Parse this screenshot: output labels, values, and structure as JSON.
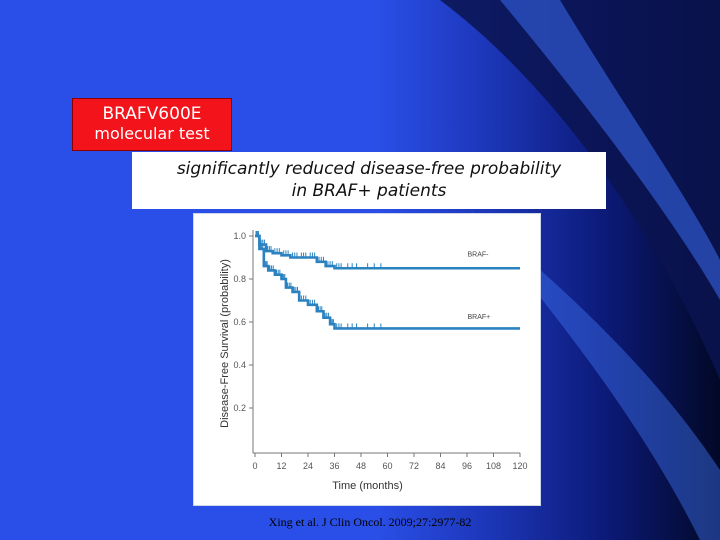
{
  "slide": {
    "box_label_line1": "BRAFV600E",
    "box_label_line2": "molecular test",
    "headline_line1": "significantly reduced disease-free probability",
    "headline_line2": "in BRAF+ patients",
    "citation": "Xing et al. J Clin Oncol. 2009;27:2977-82"
  },
  "colors": {
    "background_left": "#2a4fe8",
    "background_right": "#020826",
    "box_red": "#f2131b",
    "curve": "#2a82c0",
    "axis_text": "#555555"
  },
  "chart_data": {
    "type": "line",
    "title": "",
    "xlabel": "Time (months)",
    "ylabel": "Disease-Free Survival (probability)",
    "xlim": [
      0,
      120
    ],
    "ylim": [
      0,
      1.0
    ],
    "x_ticks": [
      "0",
      "12",
      "24",
      "36",
      "48",
      "60",
      "72",
      "84",
      "96",
      "108",
      "120"
    ],
    "y_ticks": [
      "0.2",
      "0.4",
      "0.6",
      "0.8",
      "1.0"
    ],
    "grid": false,
    "series": [
      {
        "name": "BRAF-",
        "label_at": [
          108,
          0.9
        ],
        "points": [
          [
            0,
            1.0
          ],
          [
            2,
            0.96
          ],
          [
            5,
            0.93
          ],
          [
            8,
            0.92
          ],
          [
            12,
            0.91
          ],
          [
            16,
            0.9
          ],
          [
            20,
            0.9
          ],
          [
            24,
            0.9
          ],
          [
            28,
            0.88
          ],
          [
            32,
            0.86
          ],
          [
            36,
            0.85
          ],
          [
            40,
            0.85
          ],
          [
            48,
            0.85
          ],
          [
            60,
            0.85
          ],
          [
            72,
            0.85
          ],
          [
            84,
            0.85
          ],
          [
            96,
            0.85
          ],
          [
            108,
            0.85
          ],
          [
            120,
            0.85
          ]
        ]
      },
      {
        "name": "BRAF+",
        "label_at": [
          108,
          0.6
        ],
        "points": [
          [
            0,
            1.0
          ],
          [
            2,
            0.94
          ],
          [
            4,
            0.86
          ],
          [
            6,
            0.84
          ],
          [
            9,
            0.82
          ],
          [
            12,
            0.8
          ],
          [
            14,
            0.76
          ],
          [
            17,
            0.74
          ],
          [
            20,
            0.7
          ],
          [
            24,
            0.68
          ],
          [
            28,
            0.65
          ],
          [
            31,
            0.62
          ],
          [
            34,
            0.59
          ],
          [
            36,
            0.57
          ],
          [
            40,
            0.57
          ],
          [
            48,
            0.57
          ],
          [
            60,
            0.57
          ],
          [
            72,
            0.57
          ],
          [
            84,
            0.57
          ],
          [
            96,
            0.57
          ],
          [
            108,
            0.57
          ],
          [
            120,
            0.57
          ]
        ]
      }
    ]
  }
}
